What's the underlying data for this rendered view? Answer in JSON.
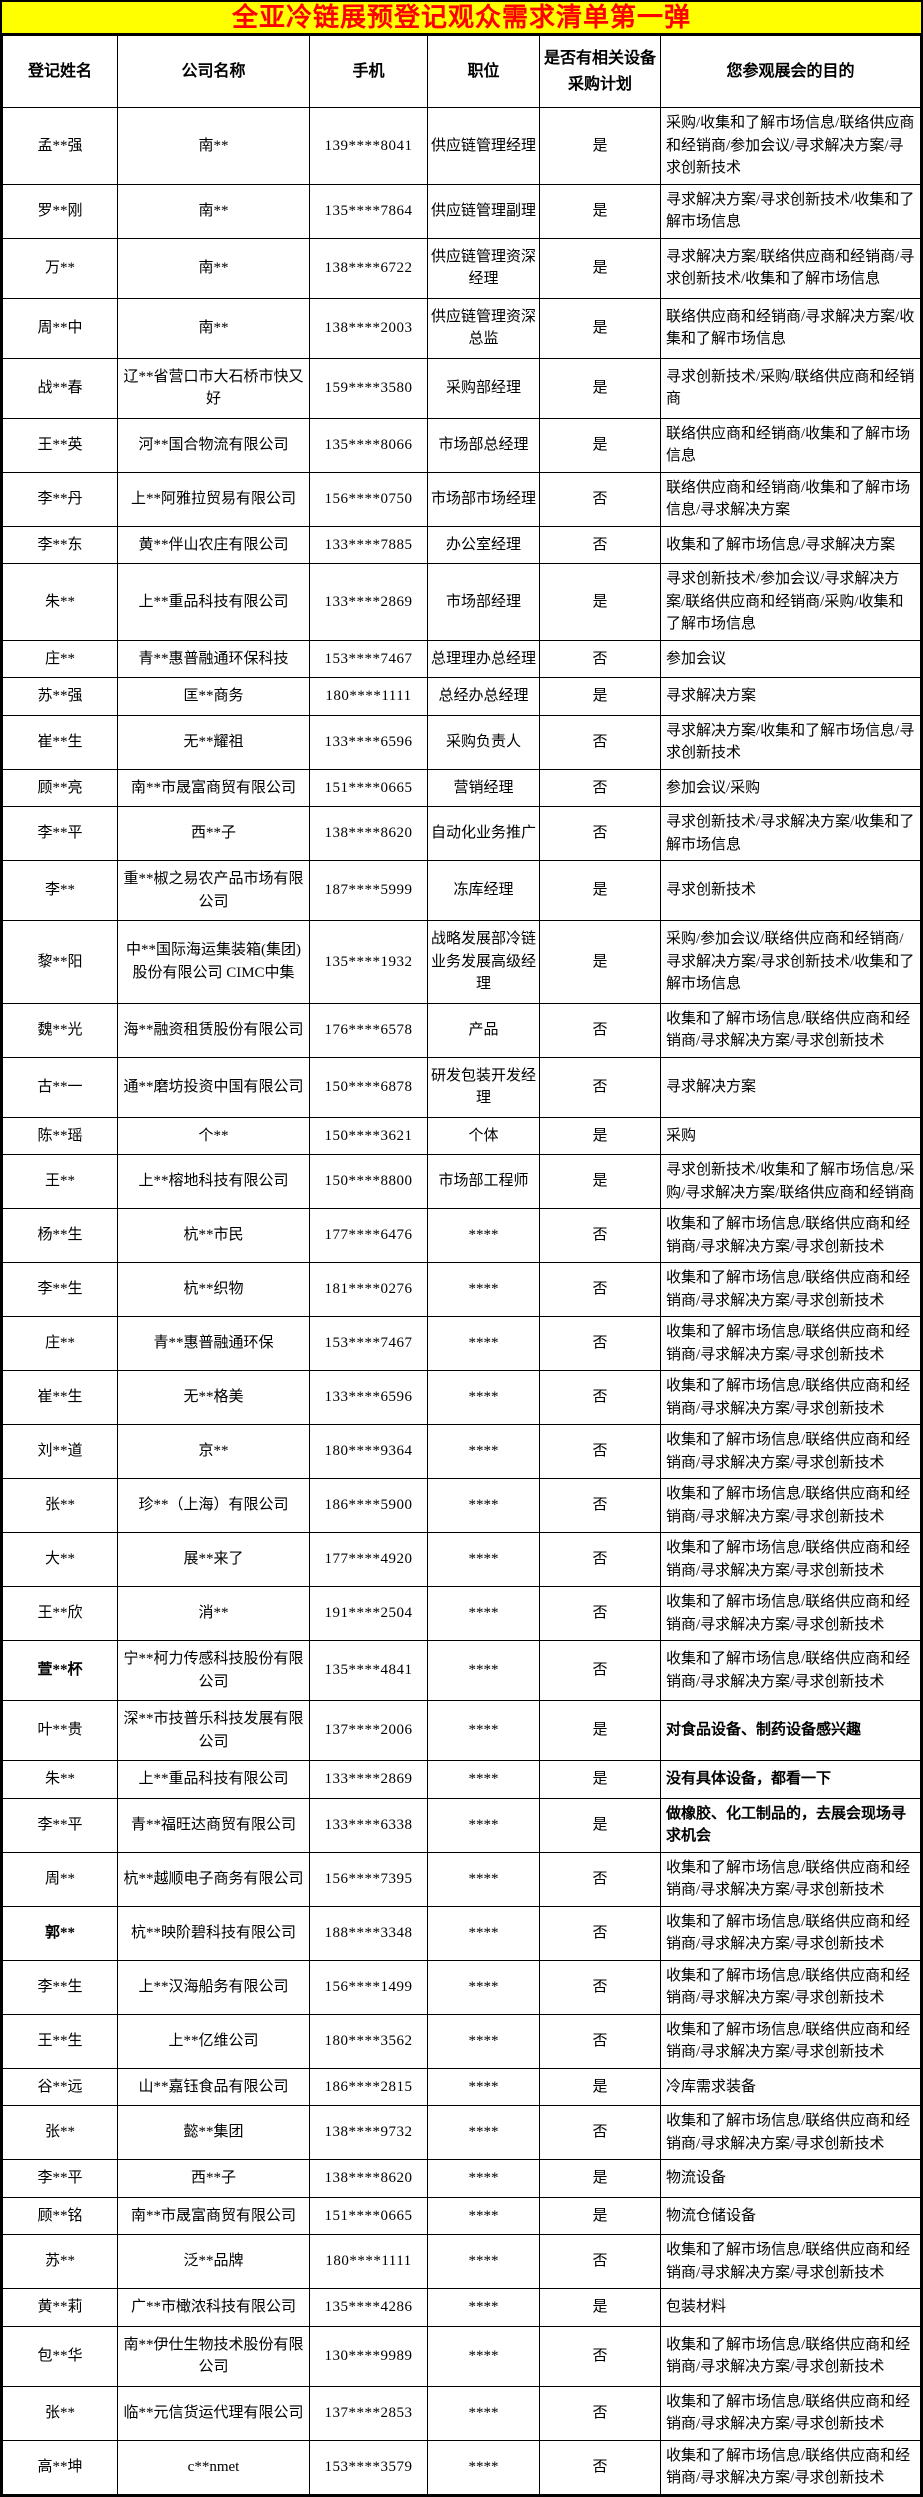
{
  "title": "全亚冷链展预登记观众需求清单第一弹",
  "colors": {
    "title_bg": "#FFFF00",
    "title_text": "#FF0000",
    "border": "#000000"
  },
  "table": {
    "headers": [
      "登记姓名",
      "公司名称",
      "手机",
      "职位",
      "是否有相关设备采购计划",
      "您参观展会的目的"
    ],
    "rows": [
      {
        "name": "孟**强",
        "company": "南**",
        "phone": "139****8041",
        "position": "供应链管理经理",
        "plan": "是",
        "purpose": "采购/收集和了解市场信息/联络供应商和经销商/参加会议/寻求解决方案/寻求创新技术"
      },
      {
        "name": "罗**刚",
        "company": "南**",
        "phone": "135****7864",
        "position": "供应链管理副理",
        "plan": "是",
        "purpose": "寻求解决方案/寻求创新技术/收集和了解市场信息"
      },
      {
        "name": "万**",
        "company": "南**",
        "phone": "138****6722",
        "position": "供应链管理资深经理",
        "plan": "是",
        "purpose": "寻求解决方案/联络供应商和经销商/寻求创新技术/收集和了解市场信息"
      },
      {
        "name": "周**中",
        "company": "南**",
        "phone": "138****2003",
        "position": "供应链管理资深总监",
        "plan": "是",
        "purpose": "联络供应商和经销商/寻求解决方案/收集和了解市场信息"
      },
      {
        "name": "战**春",
        "company": "辽**省营口市大石桥市快又好",
        "phone": "159****3580",
        "position": "采购部经理",
        "plan": "是",
        "purpose": "寻求创新技术/采购/联络供应商和经销商"
      },
      {
        "name": "王**英",
        "company": "河**国合物流有限公司",
        "phone": "135****8066",
        "position": "市场部总经理",
        "plan": "是",
        "purpose": "联络供应商和经销商/收集和了解市场信息"
      },
      {
        "name": "李**丹",
        "company": "上**阿雅拉贸易有限公司",
        "phone": "156****0750",
        "position": "市场部市场经理",
        "plan": "否",
        "purpose": "联络供应商和经销商/收集和了解市场信息/寻求解决方案"
      },
      {
        "name": "李**东",
        "company": "黄**伴山农庄有限公司",
        "phone": "133****7885",
        "position": "办公室经理",
        "plan": "否",
        "purpose": "收集和了解市场信息/寻求解决方案"
      },
      {
        "name": "朱**",
        "company": "上**重品科技有限公司",
        "phone": "133****2869",
        "position": "市场部经理",
        "plan": "是",
        "purpose": "寻求创新技术/参加会议/寻求解决方案/联络供应商和经销商/采购/收集和了解市场信息"
      },
      {
        "name": "庄**",
        "company": "青**惠普融通环保科技",
        "phone": "153****7467",
        "position": "总理理办总经理",
        "plan": "否",
        "purpose": "参加会议"
      },
      {
        "name": "苏**强",
        "company": "匡**商务",
        "phone": "180****1111",
        "position": "总经办总经理",
        "plan": "是",
        "purpose": "寻求解决方案"
      },
      {
        "name": "崔**生",
        "company": "无**耀祖",
        "phone": "133****6596",
        "position": "采购负责人",
        "plan": "否",
        "purpose": "寻求解决方案/收集和了解市场信息/寻求创新技术"
      },
      {
        "name": "顾**亮",
        "company": "南**市晟富商贸有限公司",
        "phone": "151****0665",
        "position": "营销经理",
        "plan": "否",
        "purpose": "参加会议/采购"
      },
      {
        "name": "李**平",
        "company": "西**子",
        "phone": "138****8620",
        "position": "自动化业务推广",
        "plan": "否",
        "purpose": "寻求创新技术/寻求解决方案/收集和了解市场信息"
      },
      {
        "name": "李**",
        "company": "重**椒之易农产品市场有限公司",
        "phone": "187****5999",
        "position": "冻库经理",
        "plan": "是",
        "purpose": "寻求创新技术"
      },
      {
        "name": "黎**阳",
        "company": "中**国际海运集装箱(集团)股份有限公司  CIMC中集",
        "phone": "135****1932",
        "position": "战略发展部冷链业务发展高级经理",
        "plan": "是",
        "purpose": "采购/参加会议/联络供应商和经销商/寻求解决方案/寻求创新技术/收集和了解市场信息"
      },
      {
        "name": "魏**光",
        "company": "海**融资租赁股份有限公司",
        "phone": "176****6578",
        "position": "产品",
        "plan": "否",
        "purpose": "收集和了解市场信息/联络供应商和经销商/寻求解决方案/寻求创新技术"
      },
      {
        "name": "古**一",
        "company": "通**磨坊投资中国有限公司",
        "phone": "150****6878",
        "position": "研发包装开发经理",
        "plan": "否",
        "purpose": "寻求解决方案"
      },
      {
        "name": "陈**瑶",
        "company": "个**",
        "phone": "150****3621",
        "position": "个体",
        "plan": "是",
        "purpose": "采购"
      },
      {
        "name": "王**",
        "company": "上**榕地科技有限公司",
        "phone": "150****8800",
        "position": "市场部工程师",
        "plan": "是",
        "purpose": "寻求创新技术/收集和了解市场信息/采购/寻求解决方案/联络供应商和经销商"
      },
      {
        "name": "杨**生",
        "company": "杭**市民",
        "phone": "177****6476",
        "position": "****",
        "plan": "否",
        "purpose": "收集和了解市场信息/联络供应商和经销商/寻求解决方案/寻求创新技术"
      },
      {
        "name": "李**生",
        "company": "杭**织物",
        "phone": "181****0276",
        "position": "****",
        "plan": "否",
        "purpose": "收集和了解市场信息/联络供应商和经销商/寻求解决方案/寻求创新技术"
      },
      {
        "name": "庄**",
        "company": "青**惠普融通环保",
        "phone": "153****7467",
        "position": "****",
        "plan": "否",
        "purpose": "收集和了解市场信息/联络供应商和经销商/寻求解决方案/寻求创新技术"
      },
      {
        "name": "崔**生",
        "company": "无**格美",
        "phone": "133****6596",
        "position": "****",
        "plan": "否",
        "purpose": "收集和了解市场信息/联络供应商和经销商/寻求解决方案/寻求创新技术"
      },
      {
        "name": "刘**道",
        "company": "京**",
        "phone": "180****9364",
        "position": "****",
        "plan": "否",
        "purpose": "收集和了解市场信息/联络供应商和经销商/寻求解决方案/寻求创新技术"
      },
      {
        "name": "张**",
        "company": "珍**（上海）有限公司",
        "phone": "186****5900",
        "position": "****",
        "plan": "否",
        "purpose": "收集和了解市场信息/联络供应商和经销商/寻求解决方案/寻求创新技术"
      },
      {
        "name": "大**",
        "company": "展**来了",
        "phone": "177****4920",
        "position": "****",
        "plan": "否",
        "purpose": "收集和了解市场信息/联络供应商和经销商/寻求解决方案/寻求创新技术"
      },
      {
        "name": "王**欣",
        "company": "消**",
        "phone": "191****2504",
        "position": "****",
        "plan": "否",
        "purpose": "收集和了解市场信息/联络供应商和经销商/寻求解决方案/寻求创新技术"
      },
      {
        "name": "萱**杯",
        "name_bold": true,
        "company": "宁**柯力传感科技股份有限公司",
        "phone": "135****4841",
        "position": "****",
        "plan": "否",
        "purpose": "收集和了解市场信息/联络供应商和经销商/寻求解决方案/寻求创新技术"
      },
      {
        "name": "叶**贵",
        "company": "深**市技普乐科技发展有限公司",
        "phone": "137****2006",
        "position": "****",
        "plan": "是",
        "purpose": "对食品设备、制药设备感兴趣",
        "purpose_bold": true
      },
      {
        "name": "朱**",
        "company": "上**重品科技有限公司",
        "phone": "133****2869",
        "position": "****",
        "plan": "是",
        "purpose": "没有具体设备，都看一下",
        "purpose_bold": true
      },
      {
        "name": "李**平",
        "company": "青**福旺达商贸有限公司",
        "phone": "133****6338",
        "position": "****",
        "plan": "是",
        "purpose": "做橡胶、化工制品的，去展会现场寻求机会",
        "purpose_bold": true
      },
      {
        "name": "周**",
        "company": "杭**越顺电子商务有限公司",
        "phone": "156****7395",
        "position": "****",
        "plan": "否",
        "purpose": "收集和了解市场信息/联络供应商和经销商/寻求解决方案/寻求创新技术"
      },
      {
        "name": "郭**",
        "name_bold": true,
        "company": "杭**映阶碧科技有限公司",
        "phone": "188****3348",
        "position": "****",
        "plan": "否",
        "purpose": "收集和了解市场信息/联络供应商和经销商/寻求解决方案/寻求创新技术"
      },
      {
        "name": "李**生",
        "company": "上**汉海船务有限公司",
        "phone": "156****1499",
        "position": "****",
        "plan": "否",
        "purpose": "收集和了解市场信息/联络供应商和经销商/寻求解决方案/寻求创新技术"
      },
      {
        "name": "王**生",
        "company": "上**亿维公司",
        "phone": "180****3562",
        "position": "****",
        "plan": "否",
        "purpose": "收集和了解市场信息/联络供应商和经销商/寻求解决方案/寻求创新技术"
      },
      {
        "name": "谷**远",
        "company": "山**嘉钰食品有限公司",
        "phone": "186****2815",
        "position": "****",
        "plan": "是",
        "purpose": "冷库需求装备"
      },
      {
        "name": "张**",
        "company": "懿**集团",
        "phone": "138****9732",
        "position": "****",
        "plan": "否",
        "purpose": "收集和了解市场信息/联络供应商和经销商/寻求解决方案/寻求创新技术"
      },
      {
        "name": "李**平",
        "company": "西**子",
        "phone": "138****8620",
        "position": "****",
        "plan": "是",
        "purpose": "物流设备"
      },
      {
        "name": "顾**铭",
        "company": "南**市晟富商贸有限公司",
        "phone": "151****0665",
        "position": "****",
        "plan": "是",
        "purpose": "物流仓储设备"
      },
      {
        "name": "苏**",
        "company": "泛**品牌",
        "phone": "180****1111",
        "position": "****",
        "plan": "否",
        "purpose": "收集和了解市场信息/联络供应商和经销商/寻求解决方案/寻求创新技术"
      },
      {
        "name": "黄**莉",
        "company": "广**市橄浓科技有限公司",
        "phone": "135****4286",
        "position": "****",
        "plan": "是",
        "purpose": "包装材料"
      },
      {
        "name": "包**华",
        "company": "南**伊仕生物技术股份有限公司",
        "phone": "130****9989",
        "position": "****",
        "plan": "否",
        "purpose": "收集和了解市场信息/联络供应商和经销商/寻求解决方案/寻求创新技术"
      },
      {
        "name": "张**",
        "company": "临**元信货运代理有限公司",
        "phone": "137****2853",
        "position": "****",
        "plan": "否",
        "purpose": "收集和了解市场信息/联络供应商和经销商/寻求解决方案/寻求创新技术"
      },
      {
        "name": "高**坤",
        "company": "c**nmet",
        "phone": "153****3579",
        "position": "****",
        "plan": "否",
        "purpose": "收集和了解市场信息/联络供应商和经销商/寻求解决方案/寻求创新技术"
      }
    ]
  }
}
